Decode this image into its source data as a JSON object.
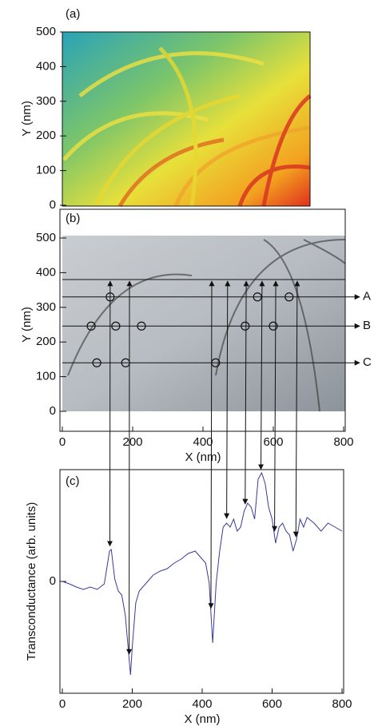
{
  "chart_data": [
    {
      "type": "heatmap",
      "panel_label": "(a)",
      "ylabel": "Y (nm)",
      "ylim": [
        0,
        500
      ],
      "yticks": [
        0,
        100,
        200,
        300,
        400,
        500
      ]
    },
    {
      "type": "image",
      "panel_label": "(b)",
      "ylabel": "Y (nm)",
      "xlabel": "X (nm)",
      "xlim": [
        0,
        800
      ],
      "xticks": [
        0,
        200,
        400,
        600,
        800
      ],
      "ylim": [
        0,
        500
      ],
      "yticks": [
        0,
        100,
        200,
        300,
        400,
        500
      ],
      "scan_lines": {
        "labels": [
          "A",
          "B",
          "C"
        ],
        "y": [
          330,
          246,
          140
        ]
      },
      "circles": {
        "x": [
          136,
          555,
          645,
          82,
          152,
          225,
          520,
          600,
          98,
          180,
          436
        ],
        "y": [
          330,
          330,
          330,
          246,
          246,
          246,
          246,
          246,
          140,
          140,
          140
        ]
      }
    },
    {
      "type": "line",
      "panel_label": "(c)",
      "ylabel": "Transconductance (arb. units)",
      "xlabel": "X (nm)",
      "xlim": [
        0,
        800
      ],
      "xticks": [
        0,
        200,
        400,
        600,
        800
      ],
      "ylim": [
        -1.4,
        1.4
      ],
      "yticks": [
        0
      ],
      "color": "#3a3a9a",
      "x": [
        0,
        20,
        40,
        60,
        80,
        100,
        120,
        135,
        140,
        150,
        160,
        170,
        180,
        190,
        195,
        200,
        210,
        220,
        240,
        260,
        280,
        300,
        320,
        340,
        360,
        380,
        400,
        410,
        420,
        430,
        440,
        450,
        460,
        470,
        480,
        490,
        500,
        510,
        520,
        530,
        540,
        550,
        560,
        570,
        580,
        590,
        600,
        610,
        620,
        630,
        640,
        650,
        660,
        670,
        680,
        690,
        700,
        720,
        740,
        760,
        780,
        800
      ],
      "values": [
        0.0,
        -0.03,
        -0.07,
        -0.1,
        -0.07,
        -0.1,
        -0.03,
        0.38,
        0.4,
        0.03,
        -0.12,
        -0.17,
        -0.42,
        -0.92,
        -1.17,
        -0.82,
        -0.27,
        -0.12,
        -0.02,
        0.08,
        0.13,
        0.16,
        0.23,
        0.28,
        0.35,
        0.38,
        0.28,
        0.23,
        -0.02,
        -0.77,
        -0.02,
        0.38,
        0.68,
        0.73,
        0.68,
        0.78,
        0.63,
        0.68,
        0.88,
        0.98,
        0.93,
        0.78,
        1.28,
        1.36,
        1.23,
        0.93,
        0.78,
        0.48,
        0.68,
        0.73,
        0.63,
        0.58,
        0.38,
        0.53,
        0.78,
        0.68,
        0.8,
        0.73,
        0.63,
        0.73,
        0.68,
        0.63
      ],
      "arrows_x": [
        136,
        191,
        425,
        470,
        523,
        568,
        607,
        668
      ]
    }
  ]
}
